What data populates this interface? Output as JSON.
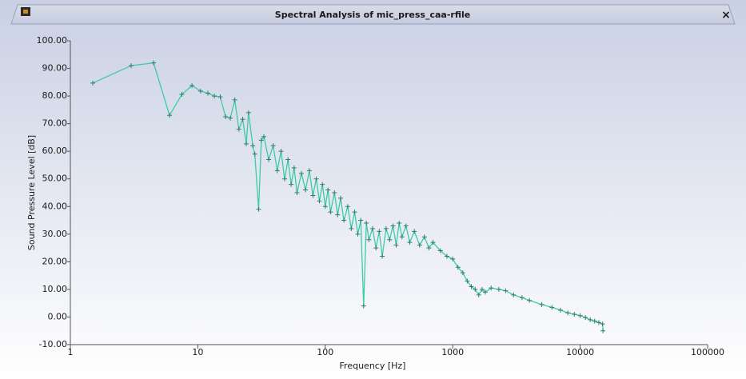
{
  "chart_data": {
    "type": "line",
    "title": "Spectral Analysis of mic_press_caa-rfile",
    "close": "×",
    "x_label": "Frequency [Hz]",
    "y_label": "Sound Pressure Level [dB]",
    "xscale": "log",
    "xlim": [
      1,
      100000
    ],
    "xticks": [
      1,
      10,
      100,
      1000,
      10000,
      100000
    ],
    "ylim": [
      -10,
      100
    ],
    "yticks": [
      {
        "value": -10,
        "label": "-10.00"
      },
      {
        "value": 0,
        "label": "0.00"
      },
      {
        "value": 10,
        "label": "10.00"
      },
      {
        "value": 20,
        "label": "20.00"
      },
      {
        "value": 30,
        "label": "30.00"
      },
      {
        "value": 40,
        "label": "40.00"
      },
      {
        "value": 50,
        "label": "50.00"
      },
      {
        "value": 60,
        "label": "60.00"
      },
      {
        "value": 70,
        "label": "70.00"
      },
      {
        "value": 80,
        "label": "80.00"
      },
      {
        "value": 90,
        "label": "90.00"
      },
      {
        "value": 100,
        "label": "100.00"
      }
    ],
    "grid": false,
    "series": [
      {
        "color": "#3fcaa8",
        "marker_color": "#2e7d68",
        "x": [
          1.5,
          3,
          4.5,
          6,
          7.5,
          9,
          10.5,
          12,
          13.5,
          15,
          16.5,
          18,
          19.5,
          21,
          22.5,
          24,
          25,
          27,
          28,
          30,
          31.5,
          33,
          36,
          39,
          42,
          45,
          48,
          51,
          54,
          57,
          60,
          65,
          70,
          75,
          80,
          85,
          90,
          95,
          100,
          105,
          110,
          118,
          125,
          132,
          140,
          150,
          160,
          170,
          180,
          190,
          200,
          210,
          220,
          235,
          250,
          265,
          280,
          300,
          320,
          340,
          360,
          380,
          400,
          430,
          460,
          500,
          550,
          600,
          650,
          700,
          800,
          900,
          1000,
          1100,
          1200,
          1300,
          1400,
          1500,
          1600,
          1700,
          1800,
          2000,
          2300,
          2600,
          3000,
          3500,
          4000,
          5000,
          6000,
          7000,
          8000,
          9000,
          10000,
          11000,
          12000,
          13000,
          14000,
          15000,
          15100
        ],
        "values": [
          84.7,
          91,
          92,
          73,
          80.6,
          83.8,
          81.8,
          81,
          80,
          79.7,
          72.5,
          72,
          78.6,
          68,
          71.6,
          62.7,
          74,
          62,
          59,
          39,
          64,
          65.3,
          57,
          62,
          53,
          60,
          50,
          57,
          48,
          54,
          45,
          52,
          46,
          53,
          44,
          50,
          42,
          48,
          40,
          46,
          38,
          45,
          37,
          43,
          35,
          40,
          32,
          38,
          30,
          35,
          4,
          34,
          28,
          32,
          25,
          31,
          22,
          32,
          28,
          33,
          26,
          34,
          29,
          33,
          27,
          31,
          26,
          29,
          25,
          27,
          24,
          22,
          21,
          18,
          16,
          13,
          11,
          10,
          8,
          10,
          9,
          10.5,
          10,
          9.5,
          8,
          7,
          6,
          4.5,
          3.5,
          2.5,
          1.5,
          1,
          0.5,
          -0.2,
          -1,
          -1.5,
          -2,
          -2.5,
          -5
        ]
      }
    ]
  }
}
